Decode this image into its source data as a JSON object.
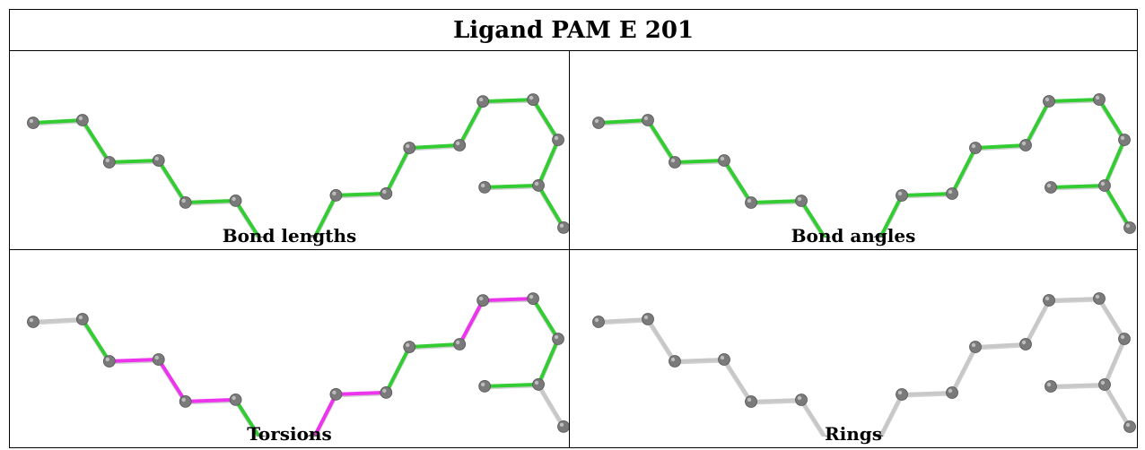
{
  "title": "Ligand PAM E 201",
  "colors": {
    "green": "#33cc33",
    "magenta": "#ee33ee",
    "gray_bond": "#c8c8c8",
    "atom": "#7a7a7a"
  },
  "panels": [
    {
      "caption": "Bond lengths",
      "bond_colors": [
        "green",
        "green",
        "green",
        "green",
        "green",
        "green",
        "green",
        "green",
        "green",
        "green",
        "green",
        "green",
        "green",
        "green",
        "green",
        "green",
        "green",
        "green",
        "green"
      ]
    },
    {
      "caption": "Bond angles",
      "bond_colors": [
        "green",
        "green",
        "green",
        "green",
        "green",
        "green",
        "green",
        "green",
        "green",
        "green",
        "green",
        "green",
        "green",
        "green",
        "green",
        "green",
        "green",
        "green",
        "green"
      ]
    },
    {
      "caption": "Torsions",
      "bond_colors": [
        "gray_bond",
        "green",
        "magenta",
        "magenta",
        "magenta",
        "green",
        "green",
        "magenta",
        "magenta",
        "green",
        "green",
        "magenta",
        "magenta",
        "green",
        "green",
        "green",
        "gray_bond",
        "gray_bond",
        "gray_bond"
      ]
    },
    {
      "caption": "Rings",
      "bond_colors": [
        "gray_bond",
        "gray_bond",
        "gray_bond",
        "gray_bond",
        "gray_bond",
        "gray_bond",
        "gray_bond",
        "gray_bond",
        "gray_bond",
        "gray_bond",
        "gray_bond",
        "gray_bond",
        "gray_bond",
        "gray_bond",
        "gray_bond",
        "gray_bond",
        "gray_bond",
        "gray_bond",
        "gray_bond"
      ]
    }
  ]
}
